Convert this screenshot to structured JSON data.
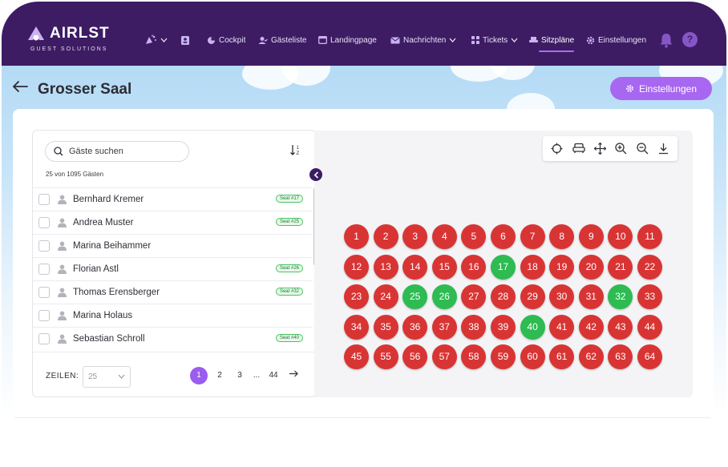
{
  "brand": {
    "name": "AIRLST",
    "tagline": "GUEST SOLUTIONS"
  },
  "nav": {
    "items": [
      {
        "label": "Cockpit",
        "icon": "cockpit-icon"
      },
      {
        "label": "Gästeliste",
        "icon": "guestlist-icon"
      },
      {
        "label": "Landingpage",
        "icon": "landingpage-icon"
      },
      {
        "label": "Nachrichten",
        "icon": "messages-icon"
      },
      {
        "label": "Tickets",
        "icon": "tickets-icon"
      },
      {
        "label": "Sitzpläne",
        "icon": "seating-icon",
        "active": true
      },
      {
        "label": "Einstellungen",
        "icon": "gear-icon"
      }
    ],
    "help_label": "?"
  },
  "page": {
    "title": "Grosser Saal",
    "settings_label": "Einstellungen"
  },
  "guests": {
    "search_placeholder": "Gäste suchen",
    "count_text": "25 von 1095 Gästen",
    "rows": [
      {
        "name": "Bernhard Kremer",
        "seat": "Seat #17"
      },
      {
        "name": "Andrea Muster",
        "seat": "Seat #25"
      },
      {
        "name": "Marina Beihammer",
        "seat": ""
      },
      {
        "name": "Florian Astl",
        "seat": "Seat #26"
      },
      {
        "name": "Thomas Erensberger",
        "seat": "Seat #32"
      },
      {
        "name": "Marina Holaus",
        "seat": ""
      },
      {
        "name": "Sebastian Schroll",
        "seat": "Seat #40"
      }
    ]
  },
  "pagination": {
    "rows_label": "ZEILEN:",
    "rows_value": "25",
    "pages": [
      "1",
      "2",
      "3",
      "...",
      "44"
    ],
    "current": "1"
  },
  "seating": {
    "rows": [
      [
        1,
        2,
        3,
        4,
        5,
        6,
        7,
        8,
        9,
        10,
        11
      ],
      [
        12,
        13,
        14,
        15,
        16,
        17,
        18,
        19,
        20,
        21,
        22
      ],
      [
        23,
        24,
        25,
        26,
        27,
        28,
        29,
        30,
        31,
        32,
        33
      ],
      [
        34,
        35,
        36,
        37,
        38,
        39,
        40,
        41,
        42,
        43,
        44
      ],
      [
        45,
        55,
        56,
        57,
        58,
        59,
        60,
        61,
        62,
        63,
        64
      ]
    ],
    "occupied": [
      17,
      25,
      26,
      32,
      40
    ],
    "colors": {
      "free": "#d93434",
      "occupied": "#2dbb52"
    }
  }
}
